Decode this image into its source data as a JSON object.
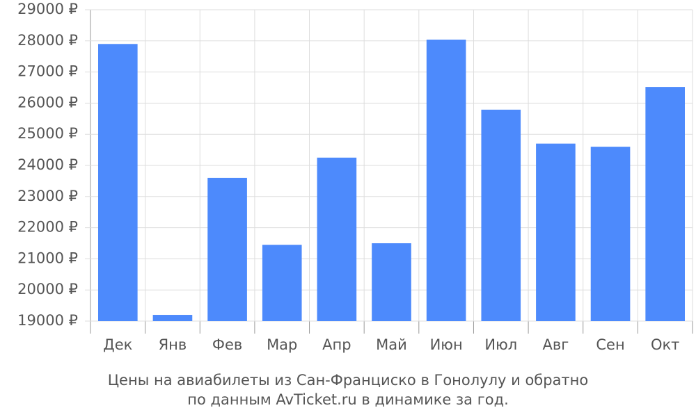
{
  "chart_data": {
    "type": "bar",
    "caption": [
      "Цены на авиабилеты из Сан-Франциско в Гонолулу и обратно",
      "по данным AvTicket.ru в динамике за год."
    ],
    "categories": [
      "Дек",
      "Янв",
      "Фев",
      "Мар",
      "Апр",
      "Май",
      "Июн",
      "Июл",
      "Авг",
      "Сен",
      "Окт"
    ],
    "values": [
      27900,
      19200,
      23600,
      21450,
      24250,
      21500,
      28040,
      25790,
      24700,
      24600,
      26520
    ],
    "color": "#4d8afc",
    "ylim": [
      19000,
      29000
    ],
    "yticks": [
      {
        "value": 19000,
        "label": "19000 ₽"
      },
      {
        "value": 20000,
        "label": "20000 ₽"
      },
      {
        "value": 21000,
        "label": "21000 ₽"
      },
      {
        "value": 22000,
        "label": "22000 ₽"
      },
      {
        "value": 23000,
        "label": "23000 ₽"
      },
      {
        "value": 24000,
        "label": "24000 ₽"
      },
      {
        "value": 25000,
        "label": "25000 ₽"
      },
      {
        "value": 26000,
        "label": "26000 ₽"
      },
      {
        "value": 27000,
        "label": "27000 ₽"
      },
      {
        "value": 28000,
        "label": "28000 ₽"
      },
      {
        "value": 29000,
        "label": "29000 ₽"
      }
    ],
    "grid": true
  }
}
